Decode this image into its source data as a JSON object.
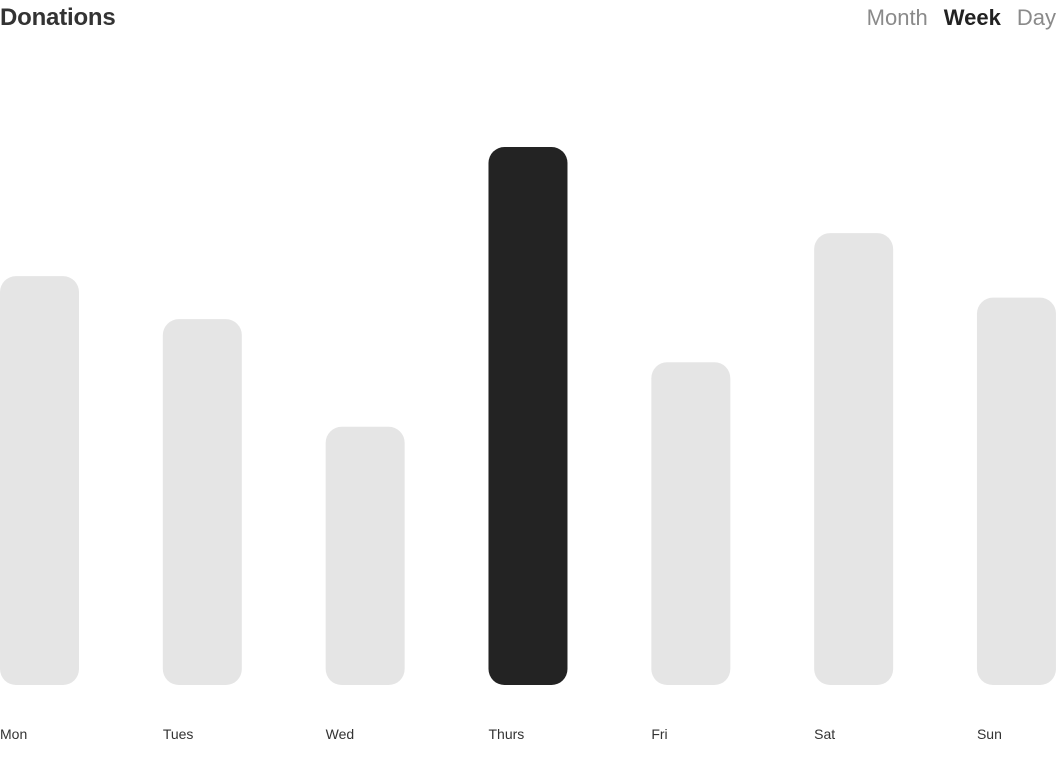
{
  "header": {
    "title": "Donations",
    "tabs": [
      {
        "label": "Month",
        "active": false
      },
      {
        "label": "Week",
        "active": true
      },
      {
        "label": "Day",
        "active": false
      }
    ]
  },
  "colors": {
    "bar": "#e5e5e5",
    "bar_highlight": "#232323",
    "text": "#333333"
  },
  "chart_data": {
    "type": "bar",
    "title": "",
    "xlabel": "",
    "ylabel": "",
    "categories": [
      "Mon",
      "Tues",
      "Wed",
      "Thurs",
      "Fri",
      "Sat",
      "Sun"
    ],
    "values": [
      76,
      68,
      48,
      100,
      60,
      84,
      72
    ],
    "highlighted": "Thurs",
    "ylim": [
      0,
      100
    ],
    "grid": false
  }
}
